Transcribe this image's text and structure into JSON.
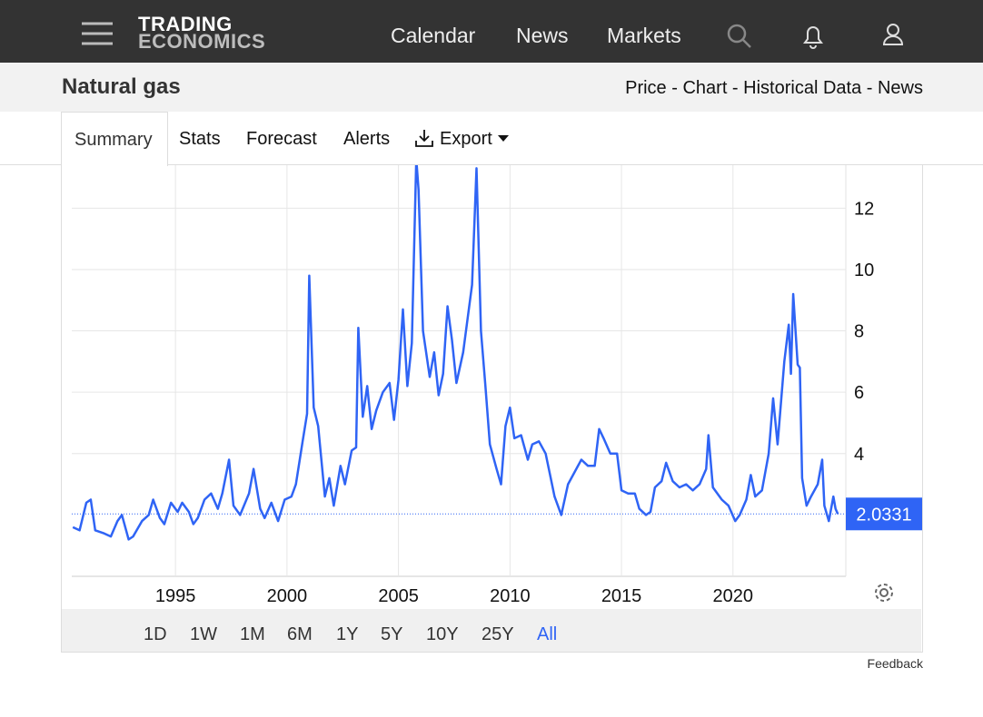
{
  "nav": {
    "logo": [
      "TRADING",
      "ECONOMICS"
    ],
    "links": [
      "Calendar",
      "News",
      "Markets"
    ]
  },
  "header": {
    "title": "Natural gas",
    "links": [
      "Price",
      "Chart",
      "Historical Data",
      "News"
    ],
    "separator": " - "
  },
  "tabs": [
    "Summary",
    "Stats",
    "Forecast",
    "Alerts",
    "Export"
  ],
  "ranges": [
    "1D",
    "1W",
    "1M",
    "6M",
    "1Y",
    "5Y",
    "10Y",
    "25Y",
    "All"
  ],
  "active_range": 8,
  "feedback": "Feedback",
  "chart_data": {
    "type": "line",
    "color": "#2f64f5",
    "grid": true,
    "xlim": [
      1990.35,
      2025.06
    ],
    "xticks": [
      1995,
      2000,
      2005,
      2010,
      2015,
      2020
    ],
    "ylim": [
      0,
      13.4
    ],
    "yticks": [
      4,
      6,
      8,
      10,
      12
    ],
    "x": [
      1990.4,
      1990.7,
      1991.0,
      1991.2,
      1991.4,
      1991.8,
      1992.1,
      1992.4,
      1992.6,
      1992.9,
      1993.1,
      1993.5,
      1993.8,
      1994.0,
      1994.3,
      1994.5,
      1994.8,
      1995.1,
      1995.3,
      1995.6,
      1995.8,
      1996.0,
      1996.3,
      1996.6,
      1996.9,
      1997.1,
      1997.4,
      1997.6,
      1997.9,
      1998.3,
      1998.5,
      1998.8,
      1999.0,
      1999.3,
      1999.6,
      1999.9,
      2000.2,
      2000.4,
      2000.7,
      2000.9,
      2001.0,
      2001.2,
      2001.4,
      2001.7,
      2001.9,
      2002.1,
      2002.4,
      2002.6,
      2002.9,
      2003.1,
      2003.2,
      2003.4,
      2003.6,
      2003.8,
      2004.0,
      2004.3,
      2004.6,
      2004.8,
      2005.0,
      2005.2,
      2005.4,
      2005.6,
      2005.8,
      2005.9,
      2006.1,
      2006.4,
      2006.6,
      2006.8,
      2007.0,
      2007.2,
      2007.4,
      2007.6,
      2007.9,
      2008.1,
      2008.3,
      2008.5,
      2008.7,
      2008.9,
      2009.1,
      2009.4,
      2009.6,
      2009.8,
      2010.0,
      2010.2,
      2010.5,
      2010.8,
      2011.0,
      2011.3,
      2011.6,
      2011.8,
      2012.0,
      2012.3,
      2012.6,
      2012.9,
      2013.2,
      2013.5,
      2013.8,
      2014.0,
      2014.2,
      2014.5,
      2014.8,
      2015.0,
      2015.3,
      2015.6,
      2015.8,
      2016.1,
      2016.3,
      2016.5,
      2016.8,
      2017.0,
      2017.3,
      2017.6,
      2017.9,
      2018.2,
      2018.5,
      2018.8,
      2018.9,
      2019.1,
      2019.5,
      2019.8,
      2020.1,
      2020.3,
      2020.6,
      2020.8,
      2021.0,
      2021.3,
      2021.6,
      2021.8,
      2022.0,
      2022.3,
      2022.5,
      2022.6,
      2022.7,
      2022.9,
      2023.0,
      2023.1,
      2023.3,
      2023.5,
      2023.8,
      2024.0,
      2024.1,
      2024.3,
      2024.5,
      2024.6,
      2024.7
    ],
    "values": [
      1.6,
      1.5,
      2.4,
      2.5,
      1.5,
      1.4,
      1.3,
      1.8,
      2.0,
      1.2,
      1.3,
      1.8,
      2.0,
      2.5,
      1.9,
      1.7,
      2.4,
      2.1,
      2.4,
      2.1,
      1.7,
      1.9,
      2.5,
      2.7,
      2.2,
      2.7,
      3.8,
      2.3,
      2.0,
      2.7,
      3.5,
      2.2,
      1.9,
      2.4,
      1.8,
      2.5,
      2.6,
      3.0,
      4.4,
      5.3,
      9.8,
      5.5,
      4.9,
      2.6,
      3.2,
      2.3,
      3.6,
      3.0,
      4.1,
      4.2,
      8.1,
      5.2,
      6.2,
      4.8,
      5.4,
      6.0,
      6.3,
      5.1,
      6.4,
      8.7,
      6.2,
      7.6,
      13.6,
      12.6,
      8.0,
      6.5,
      7.3,
      5.9,
      6.6,
      8.8,
      7.7,
      6.3,
      7.3,
      8.4,
      9.5,
      13.3,
      8.0,
      6.2,
      4.3,
      3.5,
      3.0,
      4.9,
      5.5,
      4.5,
      4.6,
      3.8,
      4.3,
      4.4,
      4.0,
      3.3,
      2.6,
      2.0,
      3.0,
      3.4,
      3.8,
      3.6,
      3.6,
      4.8,
      4.5,
      4.0,
      4.0,
      2.8,
      2.7,
      2.7,
      2.2,
      2.0,
      2.1,
      2.9,
      3.1,
      3.7,
      3.1,
      2.9,
      3.0,
      2.8,
      3.0,
      3.5,
      4.6,
      2.9,
      2.5,
      2.3,
      1.8,
      2.0,
      2.5,
      3.3,
      2.6,
      2.8,
      4.0,
      5.8,
      4.3,
      7.0,
      8.2,
      6.6,
      9.2,
      6.9,
      6.8,
      3.2,
      2.3,
      2.6,
      3.0,
      3.8,
      2.3,
      1.8,
      2.6,
      2.2,
      2.0331
    ]
  }
}
